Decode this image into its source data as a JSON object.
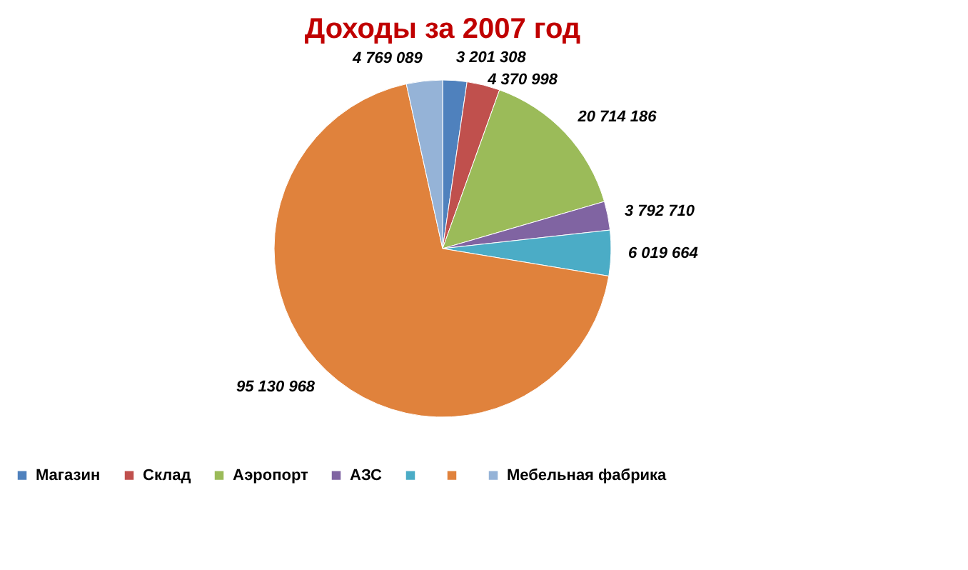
{
  "chart_data": {
    "type": "pie",
    "title": "Доходы за 2007 год",
    "categories": [
      "Магазин",
      "Склад",
      "Аэропорт",
      "АЗС",
      null,
      null,
      "Мебельная фабрика"
    ],
    "values": [
      3201308,
      4370998,
      20714186,
      3792710,
      6019664,
      95130968,
      4769089
    ],
    "value_labels": [
      "3 201 308",
      "4 370 998",
      "20 714 186",
      "3 792 710",
      "6 019 664",
      "95 130 968",
      "4 769 089"
    ],
    "colors": [
      "#4f81bd",
      "#c0504d",
      "#9bbb59",
      "#8064a2",
      "#4bacc6",
      "#e0823c",
      "#95b3d7"
    ],
    "legend": "bottom"
  }
}
